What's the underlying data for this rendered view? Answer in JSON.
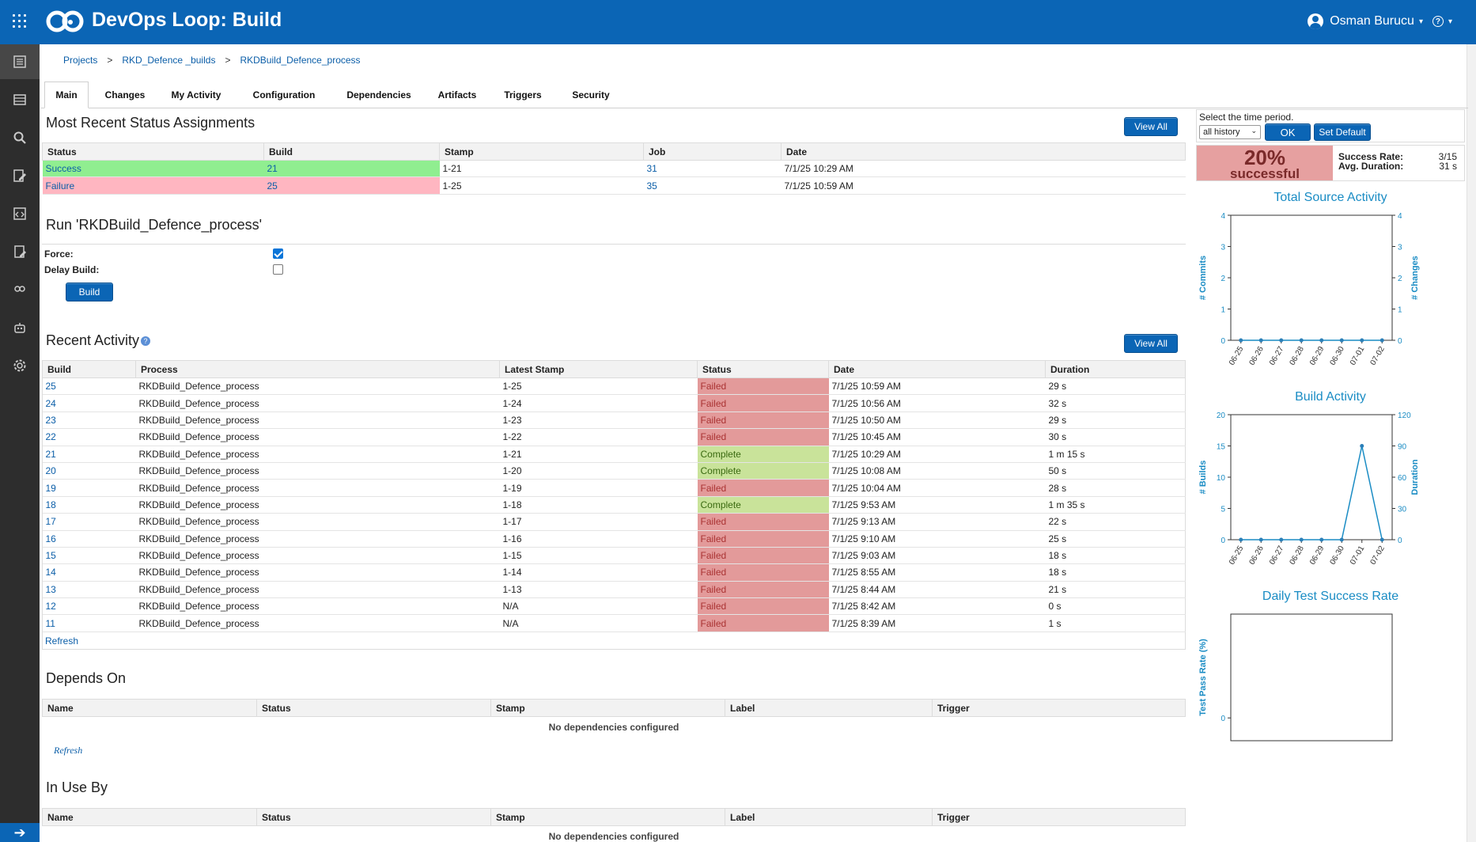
{
  "app": {
    "title": "DevOps Loop: Build",
    "user": "Osman Burucu"
  },
  "breadcrumb": [
    "Projects",
    "RKD_Defence _builds",
    "RKDBuild_Defence_process"
  ],
  "tabs": [
    "Main",
    "Changes",
    "My Activity",
    "Configuration",
    "Dependencies",
    "Artifacts",
    "Triggers",
    "Security"
  ],
  "status_assignments": {
    "title": "Most Recent Status Assignments",
    "view_all": "View All",
    "columns": [
      "Status",
      "Build",
      "Stamp",
      "Job",
      "Date"
    ],
    "rows": [
      {
        "status": "Success",
        "build": "21",
        "stamp": "1-21",
        "job": "31",
        "date": "7/1/25 10:29 AM"
      },
      {
        "status": "Failure",
        "build": "25",
        "stamp": "1-25",
        "job": "35",
        "date": "7/1/25 10:59 AM"
      }
    ]
  },
  "run": {
    "title": "Run 'RKDBuild_Defence_process'",
    "force_label": "Force:",
    "delay_label": "Delay Build:",
    "force_checked": true,
    "delay_checked": false,
    "build_button": "Build"
  },
  "recent_activity": {
    "title": "Recent Activity",
    "view_all": "View All",
    "refresh": "Refresh",
    "columns": [
      "Build",
      "Process",
      "Latest Stamp",
      "Status",
      "Date",
      "Duration"
    ],
    "rows": [
      {
        "build": "25",
        "process": "RKDBuild_Defence_process",
        "stamp": "1-25",
        "status": "Failed",
        "date": "7/1/25 10:59 AM",
        "duration": "29 s"
      },
      {
        "build": "24",
        "process": "RKDBuild_Defence_process",
        "stamp": "1-24",
        "status": "Failed",
        "date": "7/1/25 10:56 AM",
        "duration": "32 s"
      },
      {
        "build": "23",
        "process": "RKDBuild_Defence_process",
        "stamp": "1-23",
        "status": "Failed",
        "date": "7/1/25 10:50 AM",
        "duration": "29 s"
      },
      {
        "build": "22",
        "process": "RKDBuild_Defence_process",
        "stamp": "1-22",
        "status": "Failed",
        "date": "7/1/25 10:45 AM",
        "duration": "30 s"
      },
      {
        "build": "21",
        "process": "RKDBuild_Defence_process",
        "stamp": "1-21",
        "status": "Complete",
        "date": "7/1/25 10:29 AM",
        "duration": "1 m 15 s"
      },
      {
        "build": "20",
        "process": "RKDBuild_Defence_process",
        "stamp": "1-20",
        "status": "Complete",
        "date": "7/1/25 10:08 AM",
        "duration": "50 s"
      },
      {
        "build": "19",
        "process": "RKDBuild_Defence_process",
        "stamp": "1-19",
        "status": "Failed",
        "date": "7/1/25 10:04 AM",
        "duration": "28 s"
      },
      {
        "build": "18",
        "process": "RKDBuild_Defence_process",
        "stamp": "1-18",
        "status": "Complete",
        "date": "7/1/25 9:53 AM",
        "duration": "1 m 35 s"
      },
      {
        "build": "17",
        "process": "RKDBuild_Defence_process",
        "stamp": "1-17",
        "status": "Failed",
        "date": "7/1/25 9:13 AM",
        "duration": "22 s"
      },
      {
        "build": "16",
        "process": "RKDBuild_Defence_process",
        "stamp": "1-16",
        "status": "Failed",
        "date": "7/1/25 9:10 AM",
        "duration": "25 s"
      },
      {
        "build": "15",
        "process": "RKDBuild_Defence_process",
        "stamp": "1-15",
        "status": "Failed",
        "date": "7/1/25 9:03 AM",
        "duration": "18 s"
      },
      {
        "build": "14",
        "process": "RKDBuild_Defence_process",
        "stamp": "1-14",
        "status": "Failed",
        "date": "7/1/25 8:55 AM",
        "duration": "18 s"
      },
      {
        "build": "13",
        "process": "RKDBuild_Defence_process",
        "stamp": "1-13",
        "status": "Failed",
        "date": "7/1/25 8:44 AM",
        "duration": "21 s"
      },
      {
        "build": "12",
        "process": "RKDBuild_Defence_process",
        "stamp": "N/A",
        "status": "Failed",
        "date": "7/1/25 8:42 AM",
        "duration": "0 s"
      },
      {
        "build": "11",
        "process": "RKDBuild_Defence_process",
        "stamp": "N/A",
        "status": "Failed",
        "date": "7/1/25 8:39 AM",
        "duration": "1 s"
      }
    ]
  },
  "depends_on": {
    "title": "Depends On",
    "columns": [
      "Name",
      "Status",
      "Stamp",
      "Label",
      "Trigger"
    ],
    "empty": "No dependencies configured",
    "refresh": "Refresh"
  },
  "in_use_by": {
    "title": "In Use By",
    "columns": [
      "Name",
      "Status",
      "Stamp",
      "Label",
      "Trigger"
    ],
    "empty": "No dependencies configured"
  },
  "period": {
    "label": "Select the time period.",
    "selected": "all history",
    "ok": "OK",
    "set_default": "Set Default"
  },
  "success": {
    "pct": "20%",
    "label": "successful",
    "rate_label": "Success Rate:",
    "rate_value": "3/15",
    "duration_label": "Avg. Duration:",
    "duration_value": "31 s"
  },
  "colors": {
    "accent": "#0b65b5",
    "failed": "#e39a9a",
    "complete": "#c9e39a",
    "chart": "#1a8cc4"
  },
  "chart_data": [
    {
      "type": "line",
      "title": "Total Source Activity",
      "x": [
        "06-25",
        "06-26",
        "06-27",
        "06-28",
        "06-29",
        "06-30",
        "07-01",
        "07-02"
      ],
      "ylabel": "# Commits",
      "y2label": "# Changes",
      "ylim": [
        0,
        4
      ],
      "y2lim": [
        0,
        4
      ],
      "yticks": [
        "0",
        "1",
        "2",
        "3",
        "4"
      ],
      "y2ticks": [
        "0",
        "1",
        "2",
        "3",
        "4"
      ],
      "series": [
        {
          "values": [
            0,
            0,
            0,
            0,
            0,
            0,
            0,
            0
          ]
        }
      ]
    },
    {
      "type": "line",
      "title": "Build Activity",
      "x": [
        "06-25",
        "06-26",
        "06-27",
        "06-28",
        "06-29",
        "06-30",
        "07-01",
        "07-02"
      ],
      "ylabel": "# Builds",
      "y2label": "Duration",
      "ylim": [
        0,
        20
      ],
      "y2lim": [
        0,
        120
      ],
      "yticks": [
        "0",
        "5",
        "10",
        "15",
        "20"
      ],
      "y2ticks": [
        "0",
        "30",
        "60",
        "90",
        "120"
      ],
      "series": [
        {
          "values": [
            0,
            0,
            0,
            0,
            0,
            0,
            15,
            0
          ]
        }
      ]
    },
    {
      "type": "line",
      "title": "Daily Test Success Rate",
      "ylabel": "Test Pass Rate (%)",
      "yticks": [
        "0"
      ],
      "series": []
    }
  ]
}
